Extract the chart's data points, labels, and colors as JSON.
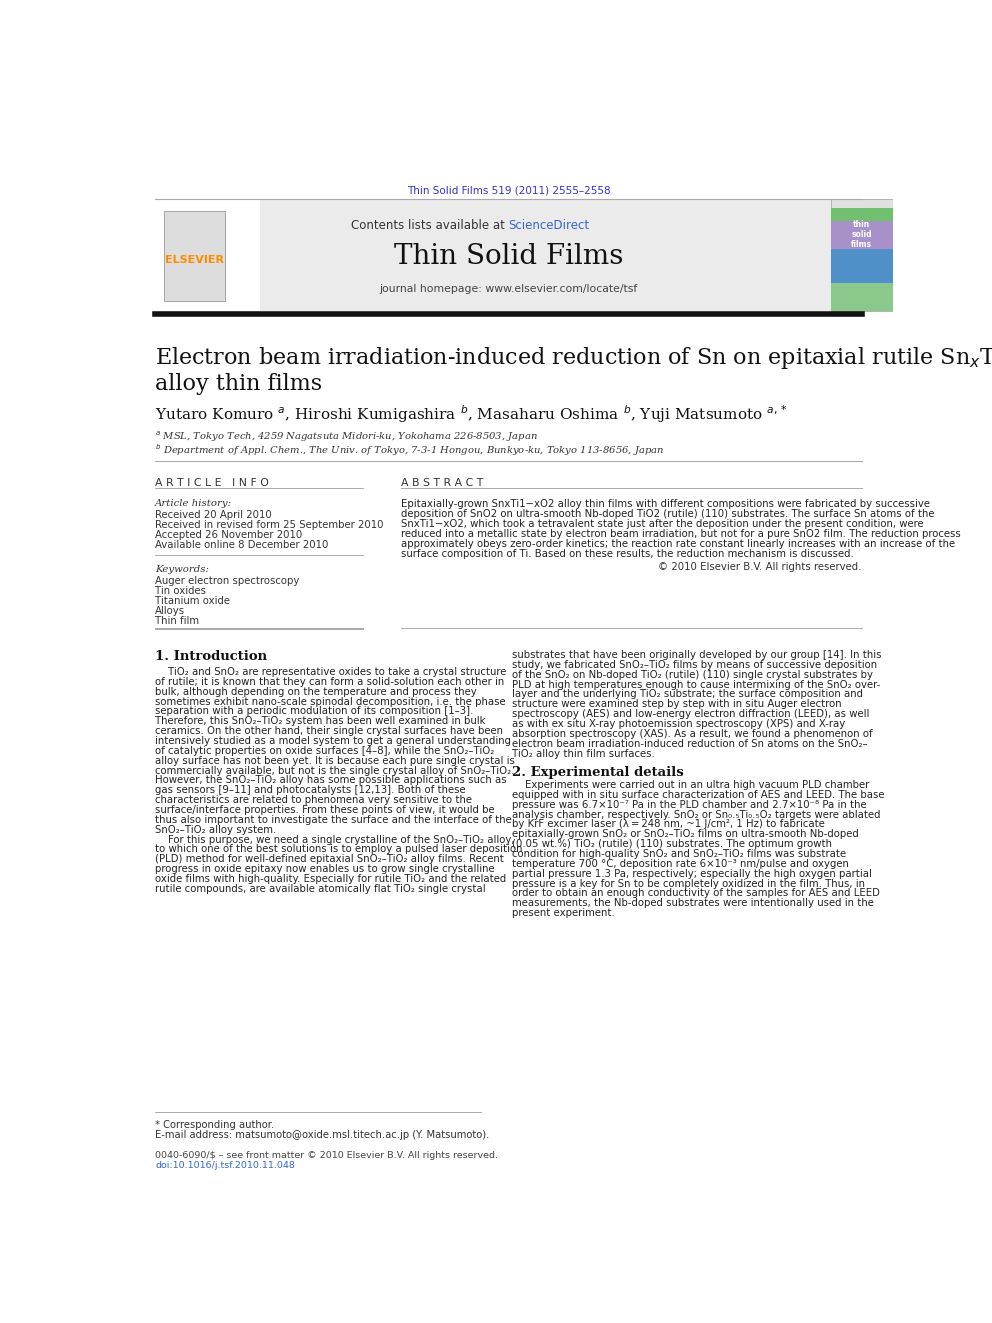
{
  "page_width": 9.92,
  "page_height": 13.23,
  "bg_color": "#ffffff",
  "journal_ref": "Thin Solid Films 519 (2011) 2555–2558",
  "journal_ref_color": "#3333cc",
  "header_bg": "#ebebeb",
  "contents_text": "Contents lists available at ",
  "sciencedirect_text": "ScienceDirect",
  "sciencedirect_color": "#3366cc",
  "journal_title": "Thin Solid Films",
  "homepage_text": "journal homepage: www.elsevier.com/locate/tsf",
  "article_info_title": "A R T I C L E   I N F O",
  "abstract_title": "A B S T R A C T",
  "article_history_label": "Article history:",
  "received": "Received 20 April 2010",
  "revised": "Received in revised form 25 September 2010",
  "accepted": "Accepted 26 November 2010",
  "online": "Available online 8 December 2010",
  "keywords_label": "Keywords:",
  "keywords": [
    "Auger electron spectroscopy",
    "Tin oxides",
    "Titanium oxide",
    "Alloys",
    "Thin film"
  ],
  "copyright": "© 2010 Elsevier B.V. All rights reserved.",
  "section1_title": "1. Introduction",
  "footer_note": "* Corresponding author.",
  "footer_email": "E-mail address: matsumoto@oxide.msl.titech.ac.jp (Y. Matsumoto).",
  "footer_issn": "0040-6090/$ – see front matter © 2010 Elsevier B.V. All rights reserved.",
  "footer_doi": "doi:10.1016/j.tsf.2010.11.048"
}
